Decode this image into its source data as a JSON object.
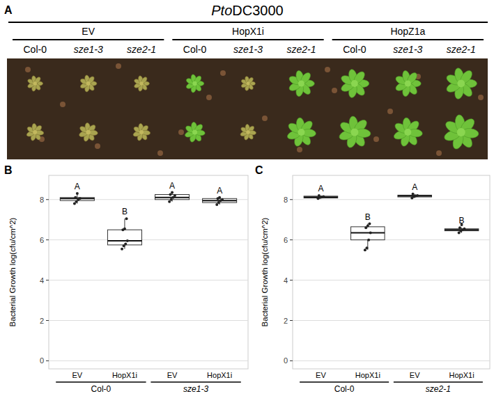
{
  "panel_a": {
    "label": "A",
    "title_italic": "Pto",
    "title_rest": "DC3000",
    "treatments": [
      "EV",
      "HopX1i",
      "HopZ1a"
    ],
    "genotypes": [
      "Col-0",
      "sze1-3",
      "sze2-1"
    ]
  },
  "chart_data": [
    {
      "type": "box",
      "label": "B",
      "y_label": "Bacterial Growth log(cfu/cm^2)",
      "categories": [
        "EV",
        "HopX1i",
        "EV",
        "HopX1i"
      ],
      "groups": [
        "Col-0",
        "sze1-3"
      ],
      "boxes": [
        {
          "min": 7.8,
          "q1": 7.95,
          "median": 8.05,
          "q3": 8.1,
          "max": 8.3,
          "points": [
            7.8,
            7.9,
            8.0,
            8.05,
            8.1,
            8.3
          ]
        },
        {
          "min": 5.55,
          "q1": 5.75,
          "median": 5.95,
          "q3": 6.5,
          "max": 7.05,
          "points": [
            5.55,
            5.7,
            5.8,
            5.95,
            6.5,
            6.55,
            7.05
          ]
        },
        {
          "min": 7.9,
          "q1": 8.0,
          "median": 8.1,
          "q3": 8.25,
          "max": 8.35,
          "points": [
            7.9,
            8.0,
            8.1,
            8.2,
            8.25,
            8.35
          ]
        },
        {
          "min": 7.75,
          "q1": 7.85,
          "median": 7.95,
          "q3": 8.05,
          "max": 8.1,
          "points": [
            7.75,
            7.85,
            7.95,
            8.0,
            8.05,
            8.1
          ]
        }
      ],
      "letters": [
        "A",
        "B",
        "A",
        "A"
      ],
      "ylim": [
        -0.4,
        9.2
      ],
      "yticks": [
        0,
        2,
        4,
        6,
        8
      ],
      "grid": true
    },
    {
      "type": "box",
      "label": "C",
      "y_label": "Bacterial Growth log(cfu/cm^2)",
      "categories": [
        "EV",
        "HopX1i",
        "EV",
        "HopX1i"
      ],
      "groups": [
        "Col-0",
        "sze2-1"
      ],
      "boxes": [
        {
          "min": 8.05,
          "q1": 8.08,
          "median": 8.12,
          "q3": 8.17,
          "max": 8.2,
          "points": [
            8.05,
            8.1,
            8.12,
            8.15,
            8.2
          ]
        },
        {
          "min": 5.5,
          "q1": 6.0,
          "median": 6.35,
          "q3": 6.65,
          "max": 6.8,
          "points": [
            5.5,
            5.6,
            6.0,
            6.35,
            6.6,
            6.7,
            6.8
          ]
        },
        {
          "min": 8.08,
          "q1": 8.13,
          "median": 8.18,
          "q3": 8.22,
          "max": 8.28,
          "points": [
            8.08,
            8.15,
            8.18,
            8.2,
            8.28
          ]
        },
        {
          "min": 6.35,
          "q1": 6.45,
          "median": 6.5,
          "q3": 6.55,
          "max": 6.6,
          "points": [
            6.35,
            6.45,
            6.5,
            6.55,
            6.6,
            6.75
          ]
        }
      ],
      "letters": [
        "A",
        "B",
        "A",
        "B"
      ],
      "ylim": [
        -0.4,
        9.2
      ],
      "yticks": [
        0,
        2,
        4,
        6,
        8
      ],
      "grid": true
    }
  ]
}
